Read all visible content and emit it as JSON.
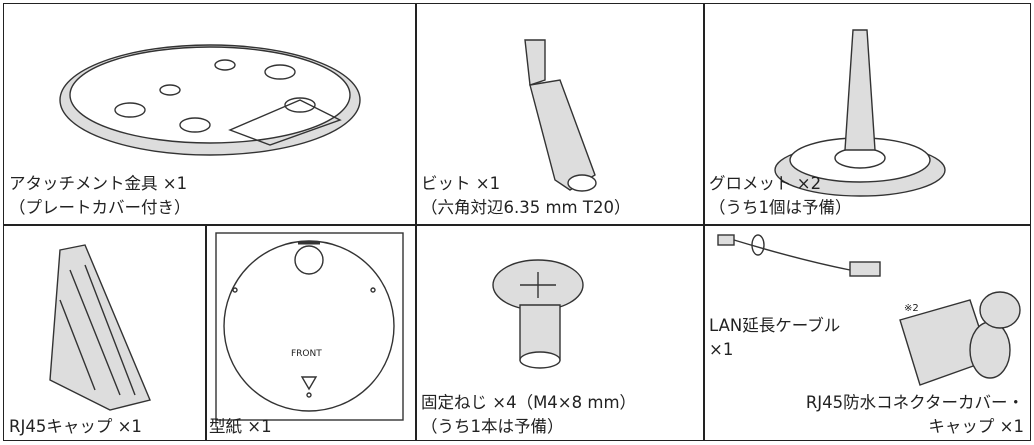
{
  "cells": [
    {
      "label": [
        "アタッチメント金具 ×1",
        "（プレートカバー付き）"
      ]
    },
    {
      "label": [
        "ビット ×1",
        "（六角対辺6.35 mm T20）"
      ]
    },
    {
      "label": [
        "グロメット ×2",
        "（うち1個は予備）"
      ]
    },
    {
      "label": [
        "RJ45キャップ ×1"
      ]
    },
    {
      "label": [
        "型紙 ×1"
      ],
      "template_text": "FRONT"
    },
    {
      "label": [
        "固定ねじ ×4（M4×8 mm）",
        "（うち1本は予備）"
      ]
    },
    {
      "label": [
        "LAN延長ケーブル",
        "×1"
      ],
      "note": "※2"
    },
    {
      "label": [
        "RJ45防水コネクターカバー・",
        "キャップ ×1"
      ]
    }
  ]
}
